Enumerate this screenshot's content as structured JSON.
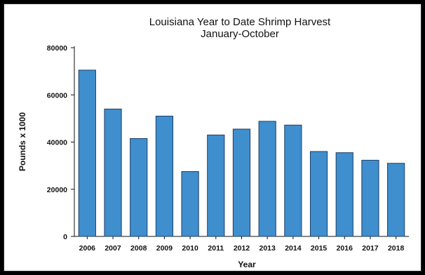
{
  "chart_data": {
    "type": "bar",
    "title": "Louisiana Year to Date Shrimp Harvest",
    "subtitle": "January-October",
    "xlabel": "Year",
    "ylabel": "Pounds x 1000",
    "categories": [
      "2006",
      "2007",
      "2008",
      "2009",
      "2010",
      "2011",
      "2012",
      "2013",
      "2014",
      "2015",
      "2016",
      "2017",
      "2018"
    ],
    "values": [
      70500,
      54000,
      41500,
      51000,
      27500,
      43000,
      45500,
      48800,
      47200,
      36000,
      35500,
      32300,
      31000
    ],
    "ylim": [
      0,
      80000
    ],
    "yticks": [
      0,
      20000,
      40000,
      60000,
      80000
    ],
    "ytick_labels": [
      "0",
      "20000",
      "40000",
      "60000",
      "80000"
    ],
    "grid": false,
    "colors": {
      "bar_fill": "#3f8ecd",
      "bar_stroke": "#1f3f66"
    }
  }
}
